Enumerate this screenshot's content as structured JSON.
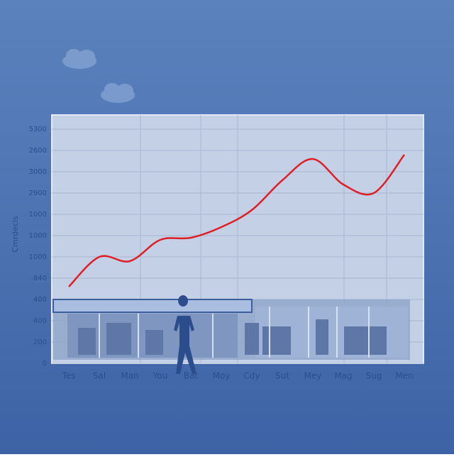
{
  "chart_data": {
    "type": "line",
    "y_axis_label": "Cmrdecis",
    "y_labels": [
      "0",
      "200",
      "400",
      "400",
      "840",
      "1000",
      "1000",
      "1000",
      "2900",
      "3000",
      "2600",
      "5300"
    ],
    "ylim": [
      0,
      11
    ],
    "categories": [
      "Tes",
      "Sal",
      "Man",
      "You",
      "Bat",
      "Moy",
      "Cdy",
      "Sut",
      "Mey",
      "Mag",
      "Sug",
      "Men"
    ],
    "series": [
      {
        "color": "#e01e24",
        "values": [
          3.6,
          5.0,
          4.8,
          5.8,
          5.9,
          6.4,
          7.2,
          8.6,
          9.6,
          8.4,
          8.0,
          9.8
        ]
      }
    ]
  }
}
